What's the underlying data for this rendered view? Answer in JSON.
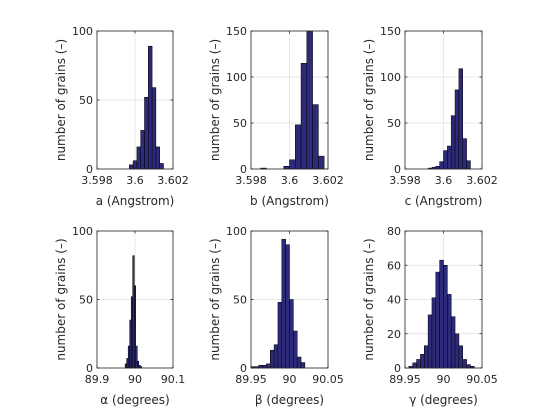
{
  "chart_data": [
    {
      "type": "bar",
      "xlabel": "a (Angstrom)",
      "ylabel": "number of grains (–)",
      "xlim": [
        3.598,
        3.602
      ],
      "ylim": [
        0,
        100
      ],
      "xticks": [
        "3.598",
        "3.6",
        "3.602"
      ],
      "yticks": [
        "0",
        "50",
        "100"
      ],
      "grid": true,
      "bar_color": "#2e2a7a",
      "bin_width": 0.0002,
      "bin_centers": [
        3.5998,
        3.6,
        3.6002,
        3.6004,
        3.6006,
        3.6008,
        3.601,
        3.6012,
        3.6014
      ],
      "values": [
        3,
        6,
        16,
        28,
        52,
        89,
        59,
        16,
        4
      ]
    },
    {
      "type": "bar",
      "xlabel": "b (Angstrom)",
      "ylabel": "number of grains (–)",
      "xlim": [
        3.598,
        3.602
      ],
      "ylim": [
        0,
        150
      ],
      "xticks": [
        "3.598",
        "3.6",
        "3.602"
      ],
      "yticks": [
        "0",
        "50",
        "100",
        "150"
      ],
      "grid": true,
      "bar_color": "#2e2a7a",
      "bin_width": 0.0003,
      "bin_centers": [
        3.59835,
        3.59865,
        3.59895,
        3.59925,
        3.59955,
        3.59985,
        3.60015,
        3.60045,
        3.60075,
        3.60105,
        3.60135,
        3.60165,
        3.60195
      ],
      "values": [
        0,
        1,
        0,
        0,
        0,
        3,
        10,
        48,
        115,
        150,
        70,
        14,
        0
      ]
    },
    {
      "type": "bar",
      "xlabel": "c (Angstrom)",
      "ylabel": "number of grains (–)",
      "xlim": [
        3.598,
        3.602
      ],
      "ylim": [
        0,
        150
      ],
      "xticks": [
        "3.598",
        "3.6",
        "3.602"
      ],
      "yticks": [
        "0",
        "50",
        "100",
        "150"
      ],
      "grid": true,
      "bar_color": "#2e2a7a",
      "bin_width": 0.0002,
      "bin_centers": [
        3.5993,
        3.5995,
        3.5997,
        3.5999,
        3.6001,
        3.6003,
        3.6005,
        3.6007,
        3.6009,
        3.6011,
        3.6013
      ],
      "values": [
        1,
        2,
        3,
        8,
        20,
        25,
        58,
        86,
        109,
        33,
        9
      ]
    },
    {
      "type": "bar",
      "xlabel": "α (degrees)",
      "ylabel": "number of grains (–)",
      "xlim": [
        89.9,
        90.1
      ],
      "ylim": [
        0,
        100
      ],
      "xticks": [
        "89.9",
        "90",
        "90.1"
      ],
      "yticks": [
        "0",
        "50",
        "100"
      ],
      "grid": true,
      "bar_color": "#2e2a7a",
      "bin_width": 0.004,
      "bin_centers": [
        89.976,
        89.98,
        89.984,
        89.988,
        89.992,
        89.996,
        90.0,
        90.004,
        90.008,
        90.012,
        90.016
      ],
      "values": [
        3,
        7,
        16,
        35,
        52,
        82,
        60,
        16,
        5,
        2,
        1
      ]
    },
    {
      "type": "bar",
      "xlabel": "β (degrees)",
      "ylabel": "number of grains (–)",
      "xlim": [
        89.95,
        90.05
      ],
      "ylim": [
        0,
        100
      ],
      "xticks": [
        "89.95",
        "90",
        "90.05"
      ],
      "yticks": [
        "0",
        "50",
        "100"
      ],
      "grid": true,
      "bar_color": "#2e2a7a",
      "bin_width": 0.005,
      "bin_centers": [
        89.9525,
        89.9575,
        89.9625,
        89.9675,
        89.9725,
        89.9775,
        89.9825,
        89.9875,
        89.9925,
        89.9975,
        90.0025,
        90.0075,
        90.0125,
        90.0175
      ],
      "values": [
        1,
        1,
        2,
        2,
        3,
        13,
        17,
        48,
        94,
        90,
        50,
        27,
        8,
        4
      ]
    },
    {
      "type": "bar",
      "xlabel": "γ (degrees)",
      "ylabel": "number of grains (–)",
      "xlim": [
        89.95,
        90.05
      ],
      "ylim": [
        0,
        80
      ],
      "xticks": [
        "89.95",
        "90",
        "90.05"
      ],
      "yticks": [
        "0",
        "20",
        "40",
        "60",
        "80"
      ],
      "grid": true,
      "bar_color": "#2e2a7a",
      "bin_width": 0.005,
      "bin_centers": [
        89.9575,
        89.9625,
        89.9675,
        89.9725,
        89.9775,
        89.9825,
        89.9875,
        89.9925,
        89.9975,
        90.0025,
        90.0075,
        90.0125,
        90.0175,
        90.0225,
        90.0275,
        90.0325,
        90.0375
      ],
      "values": [
        1,
        3,
        5,
        8,
        13,
        31,
        41,
        56,
        63,
        60,
        43,
        30,
        20,
        13,
        5,
        2,
        1
      ]
    }
  ]
}
